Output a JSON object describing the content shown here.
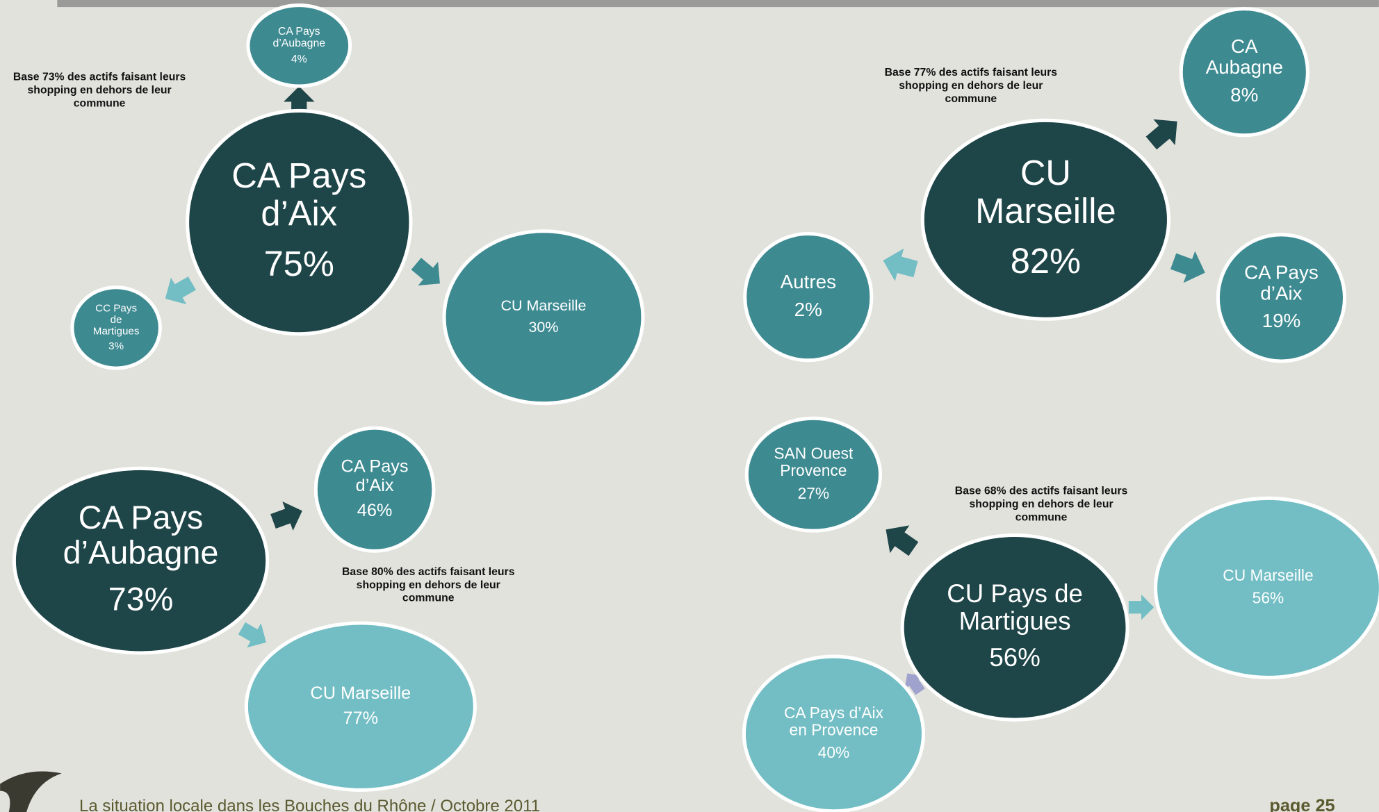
{
  "diagrams": [
    {
      "center": {
        "label": [
          "CA Pays",
          "d’Aix"
        ],
        "value": "75%"
      },
      "note": [
        "Base 73% des actifs faisant leurs",
        "shopping en dehors de leur",
        "commune"
      ],
      "satellites": [
        {
          "label": [
            "CA Pays",
            "d’Aubagne"
          ],
          "value": "4%"
        },
        {
          "label": [
            "CC Pays",
            "de",
            "Martigues"
          ],
          "value": "3%"
        },
        {
          "label": [
            "CU Marseille"
          ],
          "value": "30%"
        }
      ]
    },
    {
      "center": {
        "label": [
          "CU",
          "Marseille"
        ],
        "value": "82%"
      },
      "note": [
        "Base 77% des actifs faisant leurs",
        "shopping en dehors de leur",
        "commune"
      ],
      "satellites": [
        {
          "label": [
            "CA",
            "Aubagne"
          ],
          "value": "8%"
        },
        {
          "label": [
            "Autres"
          ],
          "value": "2%"
        },
        {
          "label": [
            "CA Pays",
            "d’Aix"
          ],
          "value": "19%"
        }
      ]
    },
    {
      "center": {
        "label": [
          "CA Pays",
          "d’Aubagne"
        ],
        "value": "73%"
      },
      "note": [
        "Base 80% des actifs faisant leurs",
        "shopping en dehors de leur",
        "commune"
      ],
      "satellites": [
        {
          "label": [
            "CA Pays",
            "d’Aix"
          ],
          "value": "46%"
        },
        {
          "label": [
            "CU Marseille"
          ],
          "value": "77%"
        }
      ]
    },
    {
      "center": {
        "label": [
          "CU Pays de",
          "Martigues"
        ],
        "value": "56%"
      },
      "note": [
        "Base 68% des actifs faisant leurs",
        "shopping en dehors de leur",
        "commune"
      ],
      "satellites": [
        {
          "label": [
            "SAN Ouest",
            "Provence"
          ],
          "value": "27%"
        },
        {
          "label": [
            "CU Marseille"
          ],
          "value": "56%"
        },
        {
          "label": [
            "CA Pays d’Aix",
            "en Provence"
          ],
          "value": "40%"
        }
      ]
    }
  ],
  "footer": {
    "text": "La situation locale dans les Bouches du Rhône / Octobre 2011",
    "page": "page 25"
  }
}
